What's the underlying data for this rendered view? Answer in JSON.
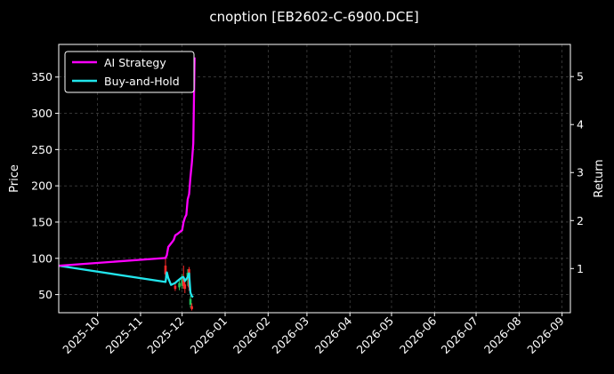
{
  "chart_data": {
    "type": "line",
    "title": "cnoption [EB2602-C-6900.DCE]",
    "ylabel_left": "Price",
    "ylabel_right": "Return",
    "x_range": [
      "2025-09-03",
      "2026-09-07"
    ],
    "ylim_left": [
      25,
      395
    ],
    "ylim_right": [
      0.08,
      5.67
    ],
    "x_ticks": [
      "2025-10",
      "2025-11",
      "2025-12",
      "2026-01",
      "2026-02",
      "2026-03",
      "2026-04",
      "2026-05",
      "2026-06",
      "2026-07",
      "2026-08",
      "2026-09"
    ],
    "y_ticks_left": [
      50,
      100,
      150,
      200,
      250,
      300,
      350
    ],
    "y_ticks_right": [
      1,
      2,
      3,
      4,
      5
    ],
    "grid": true,
    "legend_position": "top-left",
    "series": [
      {
        "name": "AI Strategy",
        "axis": "right",
        "color": "#ff00ff",
        "points": [
          [
            "2025-09-03",
            1.06
          ],
          [
            "2025-11-19",
            1.22
          ],
          [
            "2025-11-20",
            1.28
          ],
          [
            "2025-11-21",
            1.45
          ],
          [
            "2025-11-24",
            1.56
          ],
          [
            "2025-11-25",
            1.6
          ],
          [
            "2025-11-26",
            1.69
          ],
          [
            "2025-11-28",
            1.73
          ],
          [
            "2025-12-01",
            1.8
          ],
          [
            "2025-12-02",
            1.96
          ],
          [
            "2025-12-03",
            2.06
          ],
          [
            "2025-12-04",
            2.12
          ],
          [
            "2025-12-05",
            2.44
          ],
          [
            "2025-12-06",
            2.55
          ],
          [
            "2025-12-07",
            2.9
          ],
          [
            "2025-12-08",
            3.2
          ],
          [
            "2025-12-09",
            3.61
          ],
          [
            "2025-12-10",
            5.4
          ]
        ]
      },
      {
        "name": "Buy-and-Hold",
        "axis": "right",
        "color": "#22e5ec",
        "points": [
          [
            "2025-09-03",
            1.06
          ],
          [
            "2025-11-19",
            0.72
          ],
          [
            "2025-11-20",
            0.92
          ],
          [
            "2025-11-21",
            0.8
          ],
          [
            "2025-11-23",
            0.66
          ],
          [
            "2025-11-26",
            0.7
          ],
          [
            "2025-11-28",
            0.75
          ],
          [
            "2025-12-01",
            0.82
          ],
          [
            "2025-12-02",
            0.82
          ],
          [
            "2025-12-03",
            0.74
          ],
          [
            "2025-12-05",
            0.82
          ],
          [
            "2025-12-06",
            0.9
          ],
          [
            "2025-12-07",
            0.5
          ],
          [
            "2025-12-08",
            0.42
          ],
          [
            "2025-12-09",
            0.41
          ]
        ]
      }
    ],
    "candles": [
      {
        "x": "2025-11-19",
        "o": 90,
        "c": 78,
        "h": 100,
        "l": 72,
        "color": "#ff2a2a"
      },
      {
        "x": "2025-11-26",
        "o": 62,
        "c": 58,
        "h": 66,
        "l": 55,
        "color": "#ff2a2a"
      },
      {
        "x": "2025-11-29",
        "o": 60,
        "c": 66,
        "h": 70,
        "l": 56,
        "color": "#22c55e"
      },
      {
        "x": "2025-12-01",
        "o": 62,
        "c": 72,
        "h": 78,
        "l": 58,
        "color": "#22c55e"
      },
      {
        "x": "2025-12-02",
        "o": 74,
        "c": 62,
        "h": 90,
        "l": 58,
        "color": "#ff2a2a"
      },
      {
        "x": "2025-12-03",
        "o": 64,
        "c": 58,
        "h": 72,
        "l": 52,
        "color": "#ff2a2a"
      },
      {
        "x": "2025-12-05",
        "o": 70,
        "c": 80,
        "h": 85,
        "l": 62,
        "color": "#22c55e"
      },
      {
        "x": "2025-12-06",
        "o": 85,
        "c": 60,
        "h": 88,
        "l": 55,
        "color": "#ff2a2a"
      },
      {
        "x": "2025-12-07",
        "o": 44,
        "c": 36,
        "h": 48,
        "l": 32,
        "color": "#22c55e"
      },
      {
        "x": "2025-12-08",
        "o": 34,
        "c": 30,
        "h": 38,
        "l": 28,
        "color": "#ff2a2a"
      }
    ]
  }
}
